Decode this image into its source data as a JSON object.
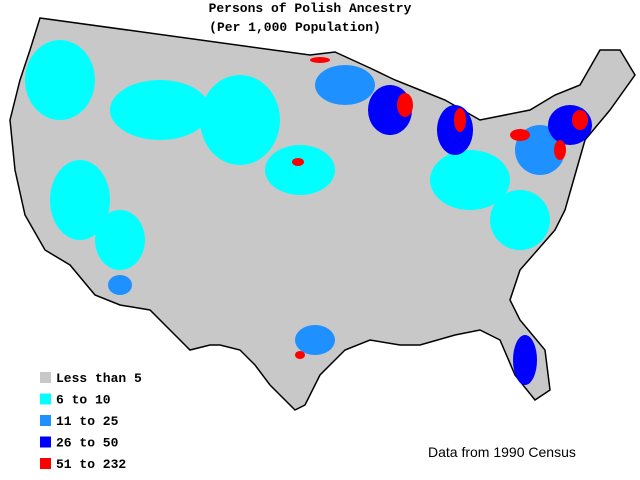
{
  "title": "Persons of Polish Ancestry",
  "subtitle": "(Per 1,000 Population)",
  "legend": [
    {
      "label": "Less than 5",
      "color": "#c8c8c8"
    },
    {
      "label": "6 to 10",
      "color": "#00ffff"
    },
    {
      "label": "11 to 25",
      "color": "#1e90ff"
    },
    {
      "label": "26 to 50",
      "color": "#0000ff"
    },
    {
      "label": "51 to 232",
      "color": "#ff0000"
    }
  ],
  "source": "Data from 1990 Census"
}
